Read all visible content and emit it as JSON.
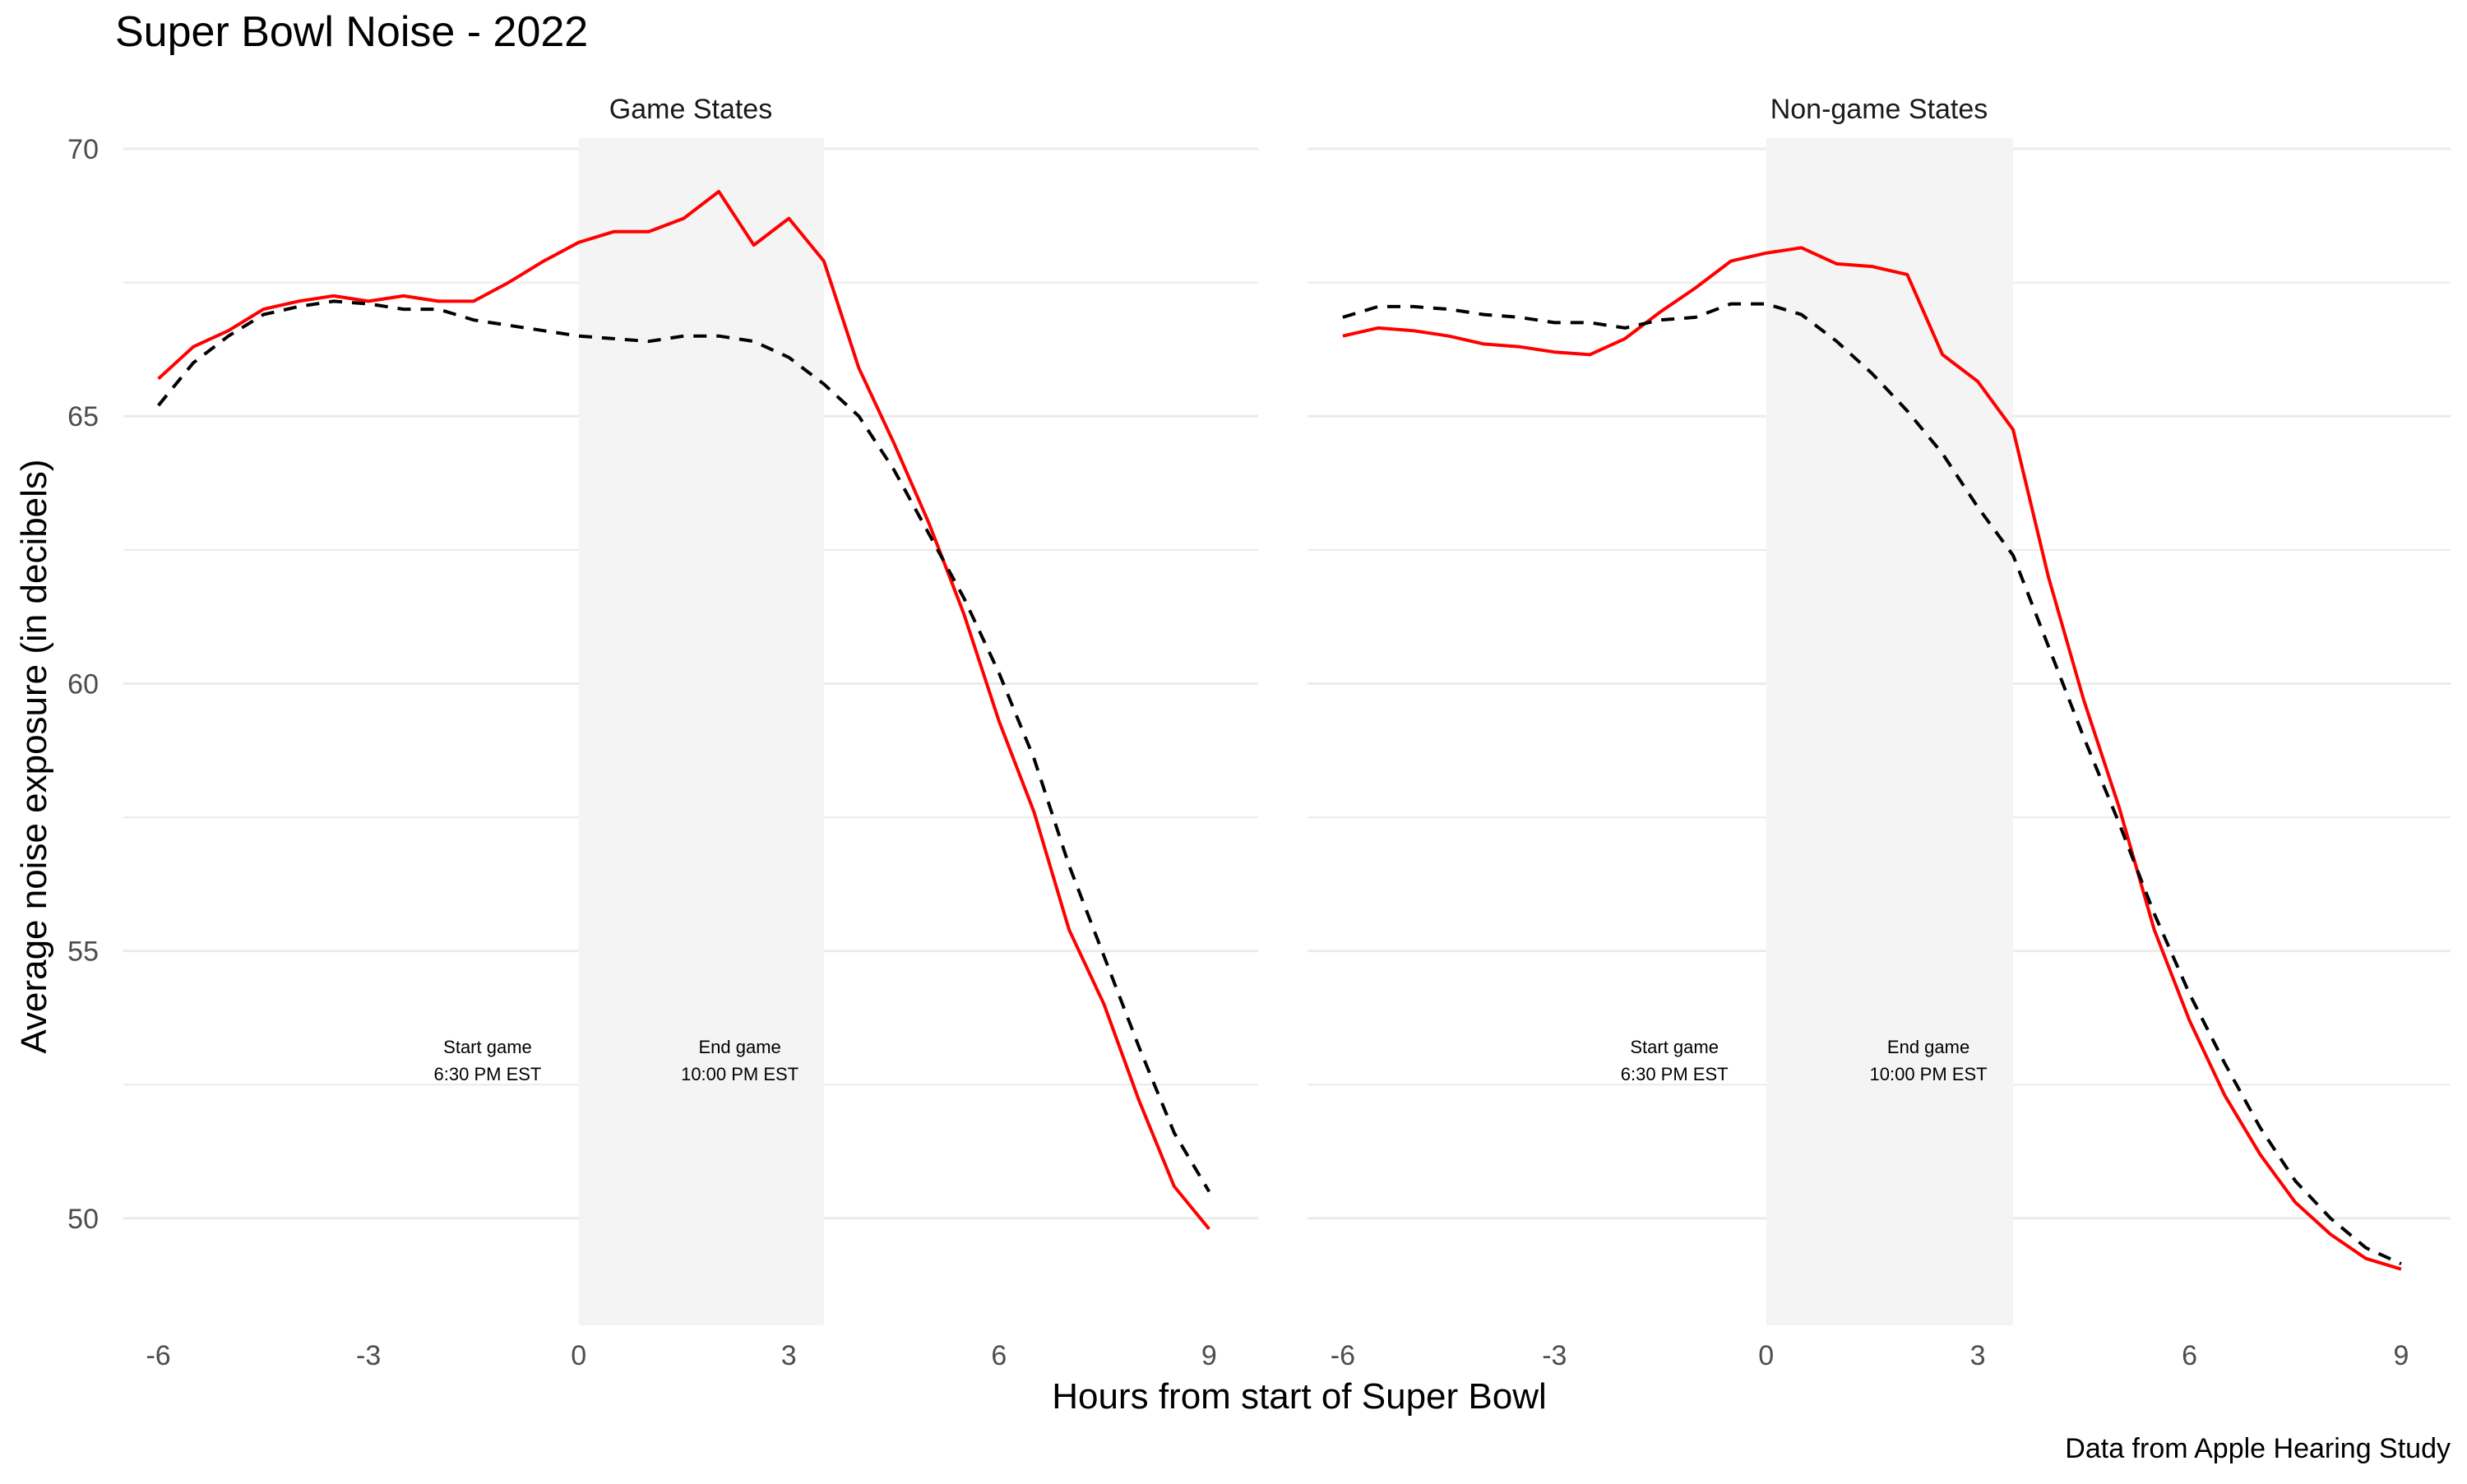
{
  "title": "Super Bowl Noise - 2022",
  "xlabel": "Hours from start of Super Bowl",
  "ylabel": "Average noise exposure (in decibels)",
  "caption": "Data from Apple Hearing Study",
  "colors": {
    "solid": "#ff0000",
    "dashed": "#000000",
    "shade": "#f4f4f4",
    "grid": "#ebebeb"
  },
  "chart_data": [
    {
      "type": "line",
      "facet_label": "Game States",
      "x_ticks": [
        -6,
        -3,
        0,
        3,
        6,
        9
      ],
      "x_tick_labels": [
        "-6",
        "-3",
        "0",
        "3",
        "6",
        "9"
      ],
      "y_ticks": [
        50,
        55,
        60,
        65,
        70
      ],
      "y_tick_labels": [
        "50",
        "55",
        "60",
        "65",
        "70"
      ],
      "xlim": [
        -6.5,
        9.7
      ],
      "ylim": [
        48,
        70.2
      ],
      "shaded_range": [
        0,
        3.5
      ],
      "annotations": [
        {
          "lines": [
            "Start game",
            "6:30 PM EST"
          ],
          "x": -1.3,
          "y": 53
        },
        {
          "lines": [
            "End game",
            "10:00 PM EST"
          ],
          "x": 2.3,
          "y": 53
        }
      ],
      "series": [
        {
          "style": "solid",
          "x": [
            -6,
            -5.5,
            -5,
            -4.5,
            -4,
            -3.5,
            -3,
            -2.5,
            -2,
            -1.5,
            -1,
            -0.5,
            0,
            0.5,
            1,
            1.5,
            2,
            2.5,
            3,
            3.5,
            4,
            4.5,
            5,
            5.5,
            6,
            6.5,
            7,
            7.5,
            8,
            8.5,
            9
          ],
          "y": [
            65.7,
            66.3,
            66.6,
            67.0,
            67.15,
            67.25,
            67.15,
            67.25,
            67.15,
            67.15,
            67.5,
            67.9,
            68.25,
            68.45,
            68.45,
            68.7,
            69.2,
            68.2,
            68.7,
            67.9,
            65.9,
            64.5,
            63.0,
            61.3,
            59.3,
            57.6,
            55.4,
            54.0,
            52.2,
            50.6,
            49.8
          ]
        },
        {
          "style": "dashed",
          "x": [
            -6,
            -5.5,
            -5,
            -4.5,
            -4,
            -3.5,
            -3,
            -2.5,
            -2,
            -1.5,
            -1,
            -0.5,
            0,
            0.5,
            1,
            1.5,
            2,
            2.5,
            3,
            3.5,
            4,
            4.5,
            5,
            5.5,
            6,
            6.5,
            7,
            7.5,
            8,
            8.5,
            9
          ],
          "y": [
            65.2,
            66.0,
            66.5,
            66.9,
            67.05,
            67.15,
            67.1,
            67.0,
            67.0,
            66.8,
            66.7,
            66.6,
            66.5,
            66.45,
            66.4,
            66.5,
            66.5,
            66.4,
            66.1,
            65.6,
            65.0,
            64.0,
            62.8,
            61.6,
            60.2,
            58.6,
            56.6,
            54.9,
            53.2,
            51.6,
            50.5
          ]
        }
      ]
    },
    {
      "type": "line",
      "facet_label": "Non-game States",
      "x_ticks": [
        -6,
        -3,
        0,
        3,
        6,
        9
      ],
      "x_tick_labels": [
        "-6",
        "-3",
        "0",
        "3",
        "6",
        "9"
      ],
      "y_ticks": [
        50,
        55,
        60,
        65,
        70
      ],
      "y_tick_labels": [
        "50",
        "55",
        "60",
        "65",
        "70"
      ],
      "xlim": [
        -6.5,
        9.7
      ],
      "ylim": [
        48,
        70.2
      ],
      "shaded_range": [
        0,
        3.5
      ],
      "annotations": [
        {
          "lines": [
            "Start game",
            "6:30 PM EST"
          ],
          "x": -1.3,
          "y": 53
        },
        {
          "lines": [
            "End game",
            "10:00 PM EST"
          ],
          "x": 2.3,
          "y": 53
        }
      ],
      "series": [
        {
          "style": "solid",
          "x": [
            -6,
            -5.5,
            -5,
            -4.5,
            -4,
            -3.5,
            -3,
            -2.5,
            -2,
            -1.5,
            -1,
            -0.5,
            0,
            0.5,
            1,
            1.5,
            2,
            2.5,
            3,
            3.5,
            4,
            4.5,
            5,
            5.5,
            6,
            6.5,
            7,
            7.5,
            8,
            8.5,
            9
          ],
          "y": [
            66.5,
            66.65,
            66.6,
            66.5,
            66.35,
            66.3,
            66.2,
            66.15,
            66.45,
            66.95,
            67.4,
            67.9,
            68.05,
            68.15,
            67.85,
            67.8,
            67.65,
            66.15,
            65.65,
            64.75,
            62.0,
            59.7,
            57.7,
            55.4,
            53.7,
            52.3,
            51.2,
            50.3,
            49.7,
            49.25,
            49.05
          ]
        },
        {
          "style": "dashed",
          "x": [
            -6,
            -5.5,
            -5,
            -4.5,
            -4,
            -3.5,
            -3,
            -2.5,
            -2,
            -1.5,
            -1,
            -0.5,
            0,
            0.5,
            1,
            1.5,
            2,
            2.5,
            3,
            3.5,
            4,
            4.5,
            5,
            5.5,
            6,
            6.5,
            7,
            7.5,
            8,
            8.5,
            9
          ],
          "y": [
            66.85,
            67.05,
            67.05,
            67.0,
            66.9,
            66.85,
            66.75,
            66.75,
            66.65,
            66.8,
            66.85,
            67.1,
            67.1,
            66.9,
            66.4,
            65.8,
            65.1,
            64.3,
            63.3,
            62.4,
            60.7,
            59.0,
            57.4,
            55.7,
            54.2,
            52.9,
            51.7,
            50.7,
            50.0,
            49.45,
            49.15
          ]
        }
      ]
    }
  ]
}
